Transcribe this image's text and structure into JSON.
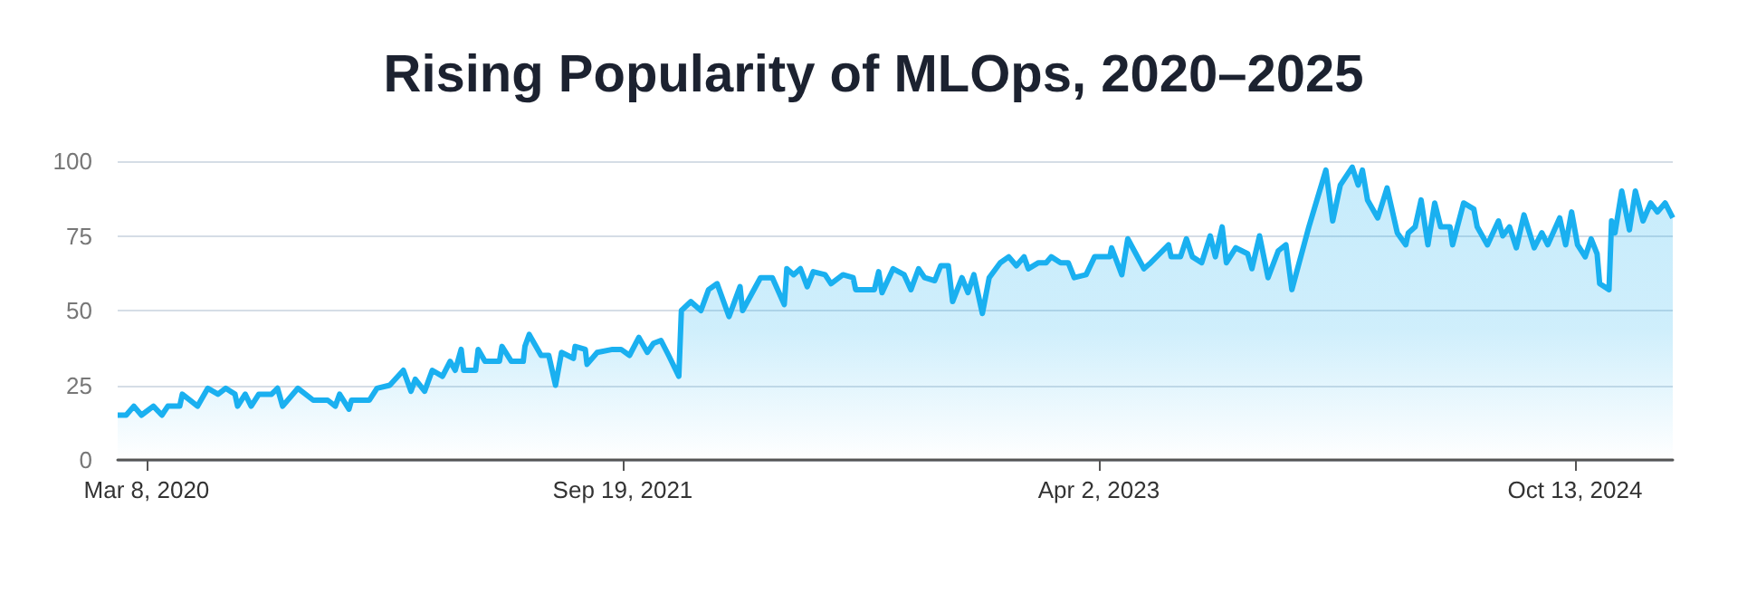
{
  "chart_data": {
    "type": "area",
    "title": "Rising Popularity of MLOps, 2020–2025",
    "x": [
      "2020-02-03",
      "2020-02-13",
      "2020-02-22",
      "2020-03-02",
      "2020-03-16",
      "2020-03-26",
      "2020-04-02",
      "2020-04-16",
      "2020-04-19",
      "2020-05-07",
      "2020-05-19",
      "2020-05-31",
      "2020-06-09",
      "2020-06-20",
      "2020-06-23",
      "2020-07-02",
      "2020-07-09",
      "2020-07-18",
      "2020-08-02",
      "2020-08-09",
      "2020-08-15",
      "2020-09-02",
      "2020-09-20",
      "2020-10-07",
      "2020-10-16",
      "2020-10-21",
      "2020-11-01",
      "2020-11-04",
      "2020-11-25",
      "2020-12-04",
      "2020-12-19",
      "2021-01-04",
      "2021-01-13",
      "2021-01-18",
      "2021-01-29",
      "2021-02-07",
      "2021-02-19",
      "2021-02-28",
      "2021-03-06",
      "2021-03-13",
      "2021-03-16",
      "2021-03-30",
      "2021-04-02",
      "2021-04-10",
      "2021-04-27",
      "2021-04-30",
      "2021-05-11",
      "2021-05-25",
      "2021-05-27",
      "2021-06-01",
      "2021-06-15",
      "2021-06-24",
      "2021-07-02",
      "2021-07-09",
      "2021-07-23",
      "2021-07-25",
      "2021-08-06",
      "2021-08-08",
      "2021-08-20",
      "2021-09-07",
      "2021-09-17",
      "2021-09-27",
      "2021-10-08",
      "2021-10-18",
      "2021-10-25",
      "2021-11-03",
      "2021-11-12",
      "2021-11-24",
      "2021-11-27",
      "2021-12-08",
      "2021-12-20",
      "2021-12-29",
      "2022-01-08",
      "2022-01-22",
      "2022-02-04",
      "2022-02-07",
      "2022-02-28",
      "2022-03-14",
      "2022-03-28",
      "2022-03-31",
      "2022-04-08",
      "2022-04-16",
      "2022-04-24",
      "2022-05-01",
      "2022-05-15",
      "2022-05-22",
      "2022-06-05",
      "2022-06-17",
      "2022-06-20",
      "2022-07-12",
      "2022-07-17",
      "2022-07-21",
      "2022-08-03",
      "2022-08-16",
      "2022-08-24",
      "2022-09-02",
      "2022-09-09",
      "2022-09-21",
      "2022-09-28",
      "2022-10-07",
      "2022-10-12",
      "2022-10-23",
      "2022-10-30",
      "2022-11-06",
      "2022-11-16",
      "2022-11-24",
      "2022-12-07",
      "2022-12-17",
      "2022-12-26",
      "2023-01-04",
      "2023-01-09",
      "2023-01-21",
      "2023-01-30",
      "2023-02-05",
      "2023-02-16",
      "2023-02-25",
      "2023-03-04",
      "2023-03-18",
      "2023-03-28",
      "2023-04-15",
      "2023-04-17",
      "2023-04-29",
      "2023-05-06",
      "2023-05-25",
      "2023-06-02",
      "2023-06-23",
      "2023-06-26",
      "2023-07-07",
      "2023-07-14",
      "2023-07-21",
      "2023-08-01",
      "2023-08-11",
      "2023-08-17",
      "2023-08-25",
      "2023-08-30",
      "2023-09-10",
      "2023-09-24",
      "2023-09-29",
      "2023-10-08",
      "2023-10-18",
      "2023-10-30",
      "2023-11-08",
      "2023-11-15",
      "2023-12-05",
      "2023-12-25",
      "2024-01-02",
      "2024-01-11",
      "2024-01-25",
      "2024-02-01",
      "2024-02-06",
      "2024-02-12",
      "2024-02-24",
      "2024-03-06",
      "2024-03-18",
      "2024-03-28",
      "2024-03-31",
      "2024-04-08",
      "2024-04-15",
      "2024-04-23",
      "2024-05-01",
      "2024-05-08",
      "2024-05-19",
      "2024-05-22",
      "2024-06-04",
      "2024-06-16",
      "2024-06-20",
      "2024-07-02",
      "2024-07-15",
      "2024-07-20",
      "2024-07-28",
      "2024-08-05",
      "2024-08-14",
      "2024-08-26",
      "2024-09-04",
      "2024-09-11",
      "2024-09-25",
      "2024-10-02",
      "2024-10-09",
      "2024-10-16",
      "2024-10-25",
      "2024-11-01",
      "2024-11-08",
      "2024-11-11",
      "2024-11-22",
      "2024-11-25",
      "2024-11-29",
      "2024-12-07",
      "2024-12-16",
      "2024-12-23",
      "2025-01-01",
      "2025-01-10",
      "2025-01-18",
      "2025-01-27",
      "2025-02-05"
    ],
    "series": [
      {
        "color": "#1ab0f0",
        "values": [
          15,
          15,
          18,
          15,
          18,
          15,
          18,
          18,
          22,
          18,
          24,
          22,
          24,
          22,
          18,
          22,
          18,
          22,
          22,
          24,
          18,
          24,
          20,
          20,
          18,
          22,
          17,
          20,
          20,
          24,
          25,
          30,
          23,
          27,
          23,
          30,
          28,
          33,
          30,
          37,
          30,
          30,
          37,
          33,
          33,
          38,
          33,
          33,
          38,
          42,
          35,
          35,
          25,
          36,
          34,
          38,
          37,
          32,
          36,
          37,
          37,
          35,
          41,
          36,
          39,
          40,
          35,
          28,
          50,
          53,
          50,
          57,
          59,
          48,
          58,
          50,
          61,
          61,
          52,
          64,
          62,
          64,
          58,
          63,
          62,
          59,
          62,
          61,
          57,
          57,
          63,
          56,
          64,
          62,
          57,
          64,
          61,
          60,
          65,
          65,
          53,
          61,
          56,
          62,
          49,
          61,
          66,
          68,
          65,
          68,
          64,
          66,
          66,
          68,
          66,
          66,
          61,
          62,
          68,
          68,
          71,
          62,
          74,
          64,
          66,
          72,
          68,
          68,
          74,
          68,
          66,
          75,
          68,
          78,
          66,
          71,
          69,
          64,
          75,
          61,
          70,
          72,
          57,
          78,
          97,
          80,
          92,
          98,
          92,
          97,
          87,
          81,
          91,
          76,
          72,
          76,
          78,
          87,
          72,
          86,
          78,
          78,
          72,
          86,
          84,
          78,
          72,
          80,
          75,
          78,
          71,
          82,
          71,
          76,
          72,
          81,
          72,
          83,
          72,
          68,
          74,
          69,
          59,
          57,
          80,
          76,
          90,
          77,
          90,
          80,
          86,
          83,
          86,
          81
        ]
      }
    ],
    "xlim": [
      "2020-02-03",
      "2025-02-05"
    ],
    "xticks": [
      {
        "value": "2020-03-08",
        "label": "Mar 8, 2020"
      },
      {
        "value": "2021-09-19",
        "label": "Sep 19, 2021"
      },
      {
        "value": "2023-04-02",
        "label": "Apr 2, 2023"
      },
      {
        "value": "2024-10-13",
        "label": "Oct 13, 2024"
      }
    ],
    "ylim": [
      0,
      100
    ],
    "yticks": [
      0,
      25,
      50,
      75,
      100
    ],
    "grid": "y"
  }
}
